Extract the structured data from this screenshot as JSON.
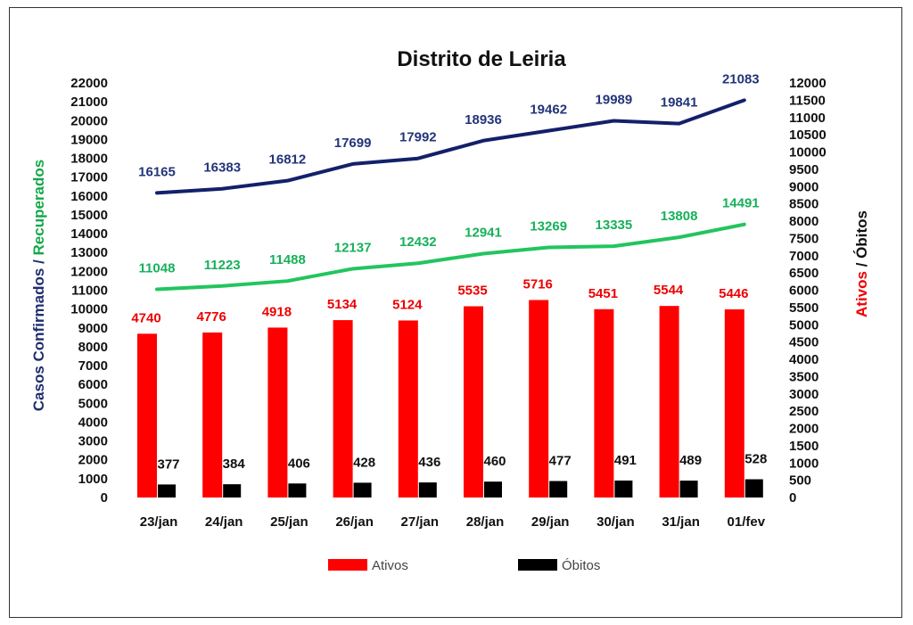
{
  "chart_data": {
    "type": "bar+line",
    "title": "Distrito de Leiria",
    "categories": [
      "23/jan",
      "24/jan",
      "25/jan",
      "26/jan",
      "27/jan",
      "28/jan",
      "29/jan",
      "30/jan",
      "31/jan",
      "01/fev"
    ],
    "left_axis": {
      "label_part1": "Casos Confirmados",
      "label_sep": " / ",
      "label_part2": "Recuperados",
      "ylim": [
        0,
        22000
      ],
      "ticks": [
        "0",
        "1000",
        "2000",
        "3000",
        "4000",
        "5000",
        "6000",
        "7000",
        "8000",
        "9000",
        "10000",
        "11000",
        "12000",
        "13000",
        "14000",
        "15000",
        "16000",
        "17000",
        "18000",
        "19000",
        "20000",
        "21000",
        "22000"
      ]
    },
    "right_axis": {
      "label_part1": "Ativos",
      "label_sep": " / ",
      "label_part2": "Óbitos",
      "ylim": [
        0,
        12000
      ],
      "ticks": [
        "0",
        "500",
        "1000",
        "1500",
        "2000",
        "2500",
        "3000",
        "3500",
        "4000",
        "4500",
        "5000",
        "5500",
        "6000",
        "6500",
        "7000",
        "7500",
        "8000",
        "8500",
        "9000",
        "9500",
        "10000",
        "10500",
        "11000",
        "11500",
        "12000"
      ]
    },
    "line_series": [
      {
        "key": "confirmados",
        "values": [
          16165,
          16383,
          16812,
          17699,
          17992,
          18936,
          19462,
          19989,
          19841,
          21083
        ],
        "color": "#13206a",
        "label_color": "#23357a"
      },
      {
        "key": "recuperados",
        "values": [
          11048,
          11223,
          11488,
          12137,
          12432,
          12941,
          13269,
          13335,
          13808,
          14491
        ],
        "color": "#22c55e",
        "label_color": "#16b15a"
      }
    ],
    "bar_series": [
      {
        "name": "Ativos",
        "values": [
          4740,
          4776,
          4918,
          5134,
          5124,
          5535,
          5716,
          5451,
          5544,
          5446
        ],
        "color": "#ff0000",
        "label_color": "#ee0000"
      },
      {
        "name": "Óbitos",
        "values": [
          377,
          384,
          406,
          428,
          436,
          460,
          477,
          491,
          489,
          528
        ],
        "color": "#000000",
        "label_color": "#111111"
      }
    ],
    "legend_position": "bottom",
    "grid": false
  }
}
